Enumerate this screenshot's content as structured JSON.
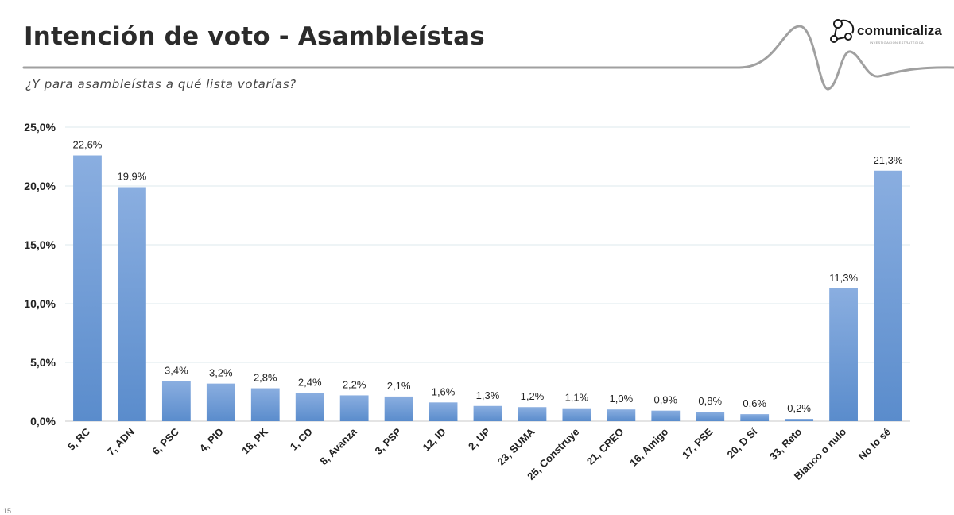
{
  "slide": {
    "title": "Intención de voto - Asambleístas",
    "subtitle": "¿Y para asambleístas a qué lista votarías?",
    "page_number": "15"
  },
  "logo": {
    "name": "comunicaliza",
    "tagline": "INVESTIGACIÓN ESTRATÉGICA",
    "icon": "network-nodes-icon"
  },
  "colors": {
    "bar_top": "#8aaee0",
    "bar_bottom": "#5a8ccc",
    "gridline": "#dde8ec",
    "axis": "#c8c8c8",
    "wave": "#a0a0a0",
    "text": "#222222"
  },
  "chart_data": {
    "type": "bar",
    "title": "",
    "xlabel": "",
    "ylabel": "",
    "categories": [
      "5, RC",
      "7, ADN",
      "6, PSC",
      "4, PID",
      "18, PK",
      "1, CD",
      "8, Avanza",
      "3, PSP",
      "12, ID",
      "2, UP",
      "23, SUMA",
      "25, Construye",
      "21, CREO",
      "16, Amigo",
      "17, PSE",
      "20, D Sí",
      "33, Reto",
      "Blanco o nulo",
      "No lo sé"
    ],
    "values": [
      22.6,
      19.9,
      3.4,
      3.2,
      2.8,
      2.4,
      2.2,
      2.1,
      1.6,
      1.3,
      1.2,
      1.1,
      1.0,
      0.9,
      0.8,
      0.6,
      0.2,
      11.3,
      21.3
    ],
    "value_labels": [
      "22,6%",
      "19,9%",
      "3,4%",
      "3,2%",
      "2,8%",
      "2,4%",
      "2,2%",
      "2,1%",
      "1,6%",
      "1,3%",
      "1,2%",
      "1,1%",
      "1,0%",
      "0,9%",
      "0,8%",
      "0,6%",
      "0,2%",
      "11,3%",
      "21,3%"
    ],
    "ylim": [
      0,
      25
    ],
    "yticks": [
      0,
      5,
      10,
      15,
      20,
      25
    ],
    "ytick_labels": [
      "0,0%",
      "5,0%",
      "10,0%",
      "15,0%",
      "20,0%",
      "25,0%"
    ],
    "grid": true,
    "legend": "none"
  }
}
